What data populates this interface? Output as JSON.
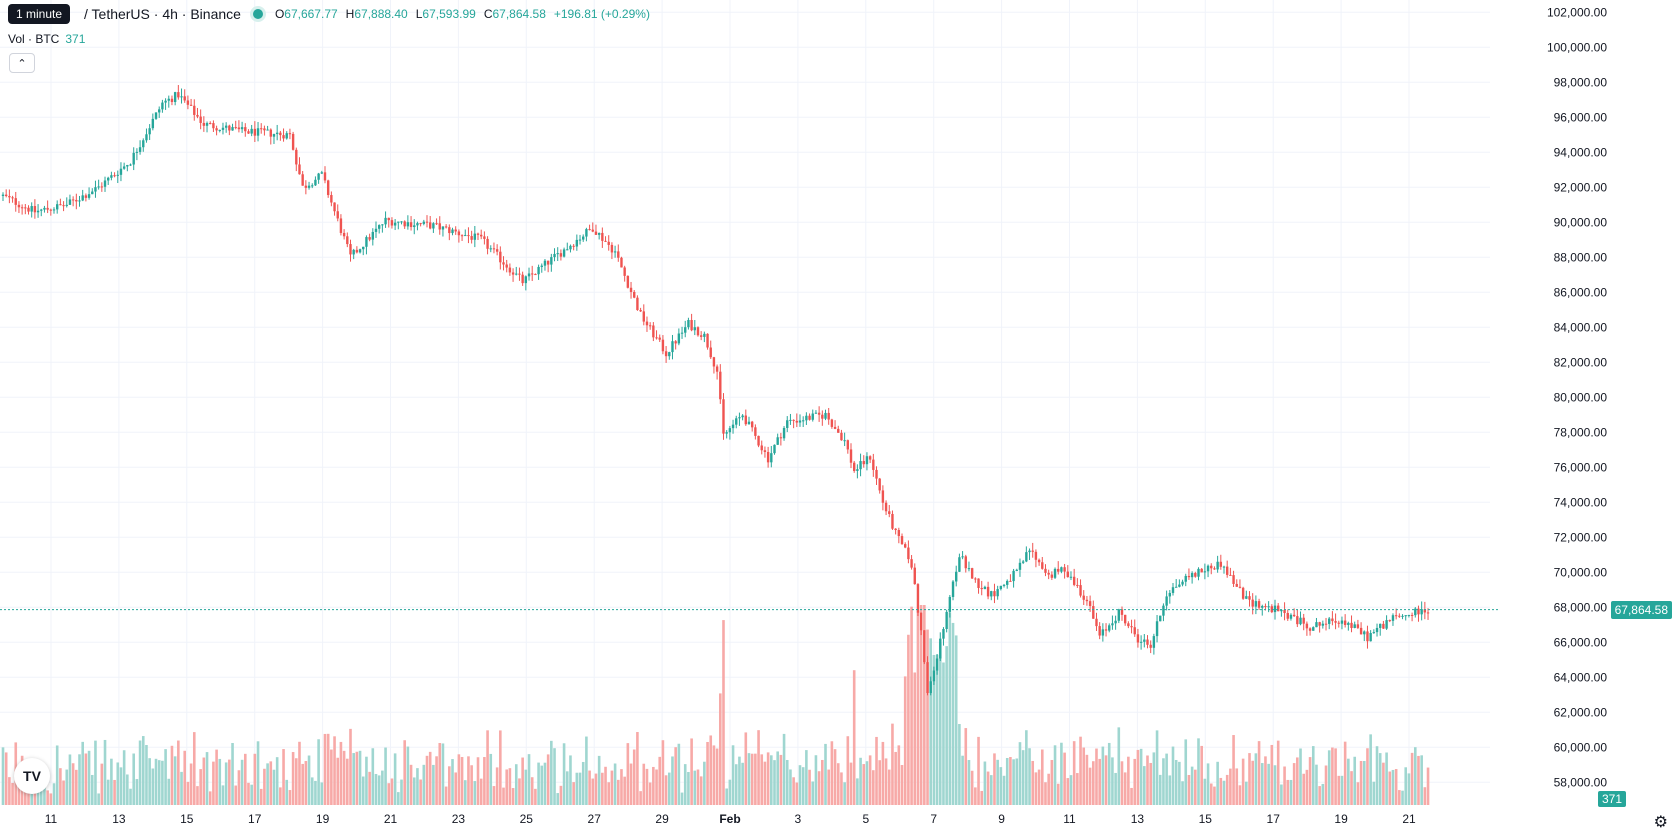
{
  "header": {
    "interval_tooltip": "1 minute",
    "symbol": "/ TetherUS · 4h · Binance",
    "ohlc": {
      "o_label": "O",
      "o": "67,667.77",
      "h_label": "H",
      "h": "67,888.40",
      "l_label": "L",
      "l": "67,593.99",
      "c_label": "C",
      "c": "67,864.58",
      "change": "+196.81 (+0.29%)"
    },
    "volume_label": "Vol · BTC",
    "volume_value": "371"
  },
  "price_label": "67,864.58",
  "volume_label_right": "371",
  "logo_text": "TV",
  "icons": {
    "settings": "gear-icon",
    "collapse": "chevron-up-icon",
    "logo": "tradingview-logo-icon"
  },
  "colors": {
    "up": "#26a69a",
    "down": "#ef5350",
    "up_volume": "#9fd6d0",
    "down_volume": "#f7a9a7"
  },
  "chart_data": {
    "type": "candlestick",
    "y_axis": {
      "ticks": [
        "102,000.00",
        "100,000.00",
        "98,000.00",
        "96,000.00",
        "94,000.00",
        "92,000.00",
        "90,000.00",
        "88,000.00",
        "86,000.00",
        "84,000.00",
        "82,000.00",
        "80,000.00",
        "78,000.00",
        "76,000.00",
        "74,000.00",
        "72,000.00",
        "70,000.00",
        "68,000.00",
        "66,000.00",
        "64,000.00",
        "62,000.00",
        "60,000.00",
        "58,000.00"
      ],
      "ylim": [
        56700,
        102700
      ]
    },
    "x_axis": {
      "ticks": [
        "11",
        "13",
        "15",
        "17",
        "19",
        "21",
        "23",
        "25",
        "27",
        "29",
        "Feb",
        "3",
        "5",
        "7",
        "9",
        "11",
        "13",
        "15",
        "17",
        "19",
        "21"
      ],
      "bold": [
        "Feb"
      ]
    },
    "last_price": 67864.58,
    "key_closes": [
      [
        0,
        91500
      ],
      [
        10,
        90600
      ],
      [
        20,
        91000
      ],
      [
        30,
        92000
      ],
      [
        40,
        93500
      ],
      [
        50,
        96800
      ],
      [
        55,
        97300
      ],
      [
        63,
        95600
      ],
      [
        75,
        95200
      ],
      [
        90,
        95000
      ],
      [
        94,
        92000
      ],
      [
        100,
        92700
      ],
      [
        109,
        88000
      ],
      [
        120,
        90100
      ],
      [
        135,
        89800
      ],
      [
        150,
        89000
      ],
      [
        163,
        86600
      ],
      [
        173,
        88000
      ],
      [
        185,
        89700
      ],
      [
        192,
        88300
      ],
      [
        200,
        84700
      ],
      [
        208,
        82500
      ],
      [
        215,
        84200
      ],
      [
        220,
        83500
      ],
      [
        224,
        81500
      ],
      [
        226,
        77800
      ],
      [
        232,
        79000
      ],
      [
        240,
        76500
      ],
      [
        246,
        78600
      ],
      [
        258,
        79000
      ],
      [
        264,
        77500
      ],
      [
        267,
        75800
      ],
      [
        272,
        76600
      ],
      [
        276,
        74000
      ],
      [
        280,
        72200
      ],
      [
        285,
        70500
      ],
      [
        288,
        66600
      ],
      [
        290,
        63000
      ],
      [
        296,
        67500
      ],
      [
        300,
        71000
      ],
      [
        305,
        69500
      ],
      [
        310,
        68700
      ],
      [
        318,
        70000
      ],
      [
        322,
        71300
      ],
      [
        328,
        69800
      ],
      [
        333,
        70200
      ],
      [
        340,
        68400
      ],
      [
        344,
        66300
      ],
      [
        350,
        67700
      ],
      [
        356,
        66200
      ],
      [
        360,
        65800
      ],
      [
        365,
        68800
      ],
      [
        372,
        69800
      ],
      [
        382,
        70500
      ],
      [
        390,
        68400
      ],
      [
        400,
        67800
      ],
      [
        410,
        66900
      ],
      [
        420,
        67300
      ],
      [
        428,
        66300
      ],
      [
        435,
        67300
      ],
      [
        443,
        67700
      ],
      [
        447,
        67864
      ]
    ],
    "volume_ylim": [
      0,
      6200
    ]
  }
}
